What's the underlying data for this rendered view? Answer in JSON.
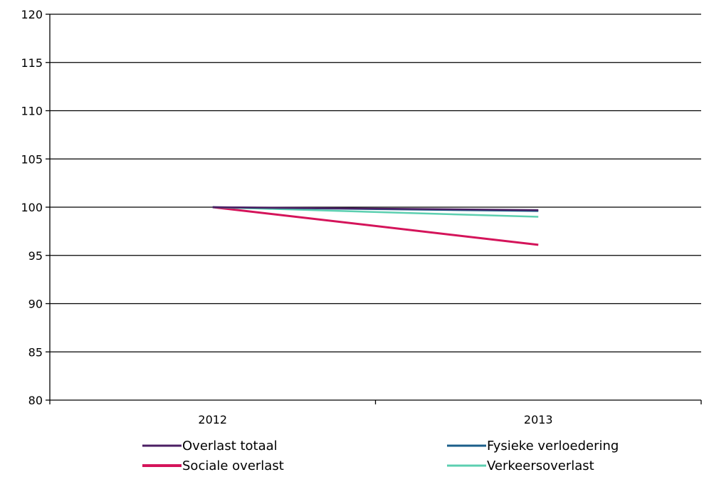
{
  "chart_data": {
    "type": "line",
    "title": "",
    "xlabel": "",
    "ylabel": "",
    "categories": [
      "2012",
      "2013"
    ],
    "ylim": [
      80,
      120
    ],
    "yticks": [
      80,
      85,
      90,
      95,
      100,
      105,
      110,
      115,
      120
    ],
    "yticks_labels": [
      "80",
      "85",
      "90",
      "95",
      "100",
      "105",
      "110",
      "115",
      "120"
    ],
    "grid": "horizontal",
    "legend_position": "bottom",
    "series": [
      {
        "name": "Overlast totaal",
        "values": [
          100,
          99.7
        ],
        "color": "#4b1e63"
      },
      {
        "name": "Fysieke verloedering",
        "values": [
          100,
          99.6
        ],
        "color": "#1a5e8a"
      },
      {
        "name": "Sociale overlast",
        "values": [
          100,
          96.1
        ],
        "color": "#d4145a"
      },
      {
        "name": "Verkeersoverlast",
        "values": [
          100,
          99.0
        ],
        "color": "#5ccfb0"
      }
    ]
  }
}
